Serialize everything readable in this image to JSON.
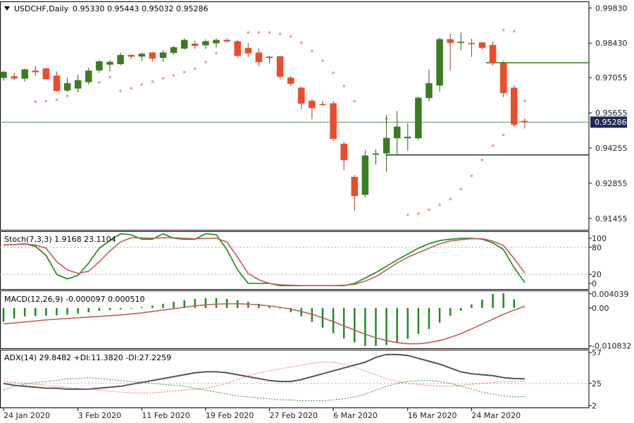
{
  "header": {
    "symbol": "USDCHF,Daily",
    "ohlc_text": "0.95330 0.95443 0.95032 0.95286",
    "collapse_icon": "triangle-down-icon"
  },
  "current_price_label": "0.95286",
  "colors": {
    "bull": "#3a7d1f",
    "bear": "#ee4b2b",
    "sar": "#f0a080",
    "price_line": "#5b8f5b",
    "stoch_main": "#0f8a0f",
    "stoch_signal": "#c85a5a",
    "macd_hist": "#1f8a1f",
    "macd_signal": "#c85a5a",
    "adx": "#555555",
    "plus_di": "#2e8b2e",
    "minus_di": "#e8704a",
    "current_badge_bg": "#1e2a55"
  },
  "chart_data": [
    {
      "type": "candlestick",
      "pane": "price",
      "title": "USDCHF,Daily",
      "y_ticks": [
        "0.99830",
        "0.98430",
        "0.97055",
        "0.95655",
        "0.94255",
        "0.92855",
        "0.91455"
      ],
      "ylim": [
        0.91,
        1.0009
      ],
      "candles": [
        {
          "o": 0.9705,
          "h": 0.9733,
          "l": 0.9693,
          "c": 0.9728
        },
        {
          "o": 0.971,
          "h": 0.9725,
          "l": 0.9695,
          "c": 0.9703
        },
        {
          "o": 0.9702,
          "h": 0.9742,
          "l": 0.969,
          "c": 0.9738
        },
        {
          "o": 0.9733,
          "h": 0.9752,
          "l": 0.9712,
          "c": 0.9728
        },
        {
          "o": 0.9742,
          "h": 0.9745,
          "l": 0.9698,
          "c": 0.97
        },
        {
          "o": 0.9713,
          "h": 0.973,
          "l": 0.9648,
          "c": 0.9653
        },
        {
          "o": 0.9655,
          "h": 0.9705,
          "l": 0.9648,
          "c": 0.9683
        },
        {
          "o": 0.9663,
          "h": 0.9718,
          "l": 0.9655,
          "c": 0.9695
        },
        {
          "o": 0.9688,
          "h": 0.9745,
          "l": 0.9678,
          "c": 0.9733
        },
        {
          "o": 0.9735,
          "h": 0.9775,
          "l": 0.9725,
          "c": 0.977
        },
        {
          "o": 0.9758,
          "h": 0.9775,
          "l": 0.973,
          "c": 0.9768
        },
        {
          "o": 0.976,
          "h": 0.9805,
          "l": 0.9755,
          "c": 0.9795
        },
        {
          "o": 0.9795,
          "h": 0.98,
          "l": 0.978,
          "c": 0.979
        },
        {
          "o": 0.979,
          "h": 0.9805,
          "l": 0.9772,
          "c": 0.98
        },
        {
          "o": 0.9805,
          "h": 0.9808,
          "l": 0.977,
          "c": 0.9782
        },
        {
          "o": 0.9785,
          "h": 0.9815,
          "l": 0.9768,
          "c": 0.9805
        },
        {
          "o": 0.9805,
          "h": 0.9832,
          "l": 0.9797,
          "c": 0.9826
        },
        {
          "o": 0.9822,
          "h": 0.9862,
          "l": 0.9817,
          "c": 0.9855
        },
        {
          "o": 0.984,
          "h": 0.9852,
          "l": 0.982,
          "c": 0.9833
        },
        {
          "o": 0.9835,
          "h": 0.9858,
          "l": 0.982,
          "c": 0.985
        },
        {
          "o": 0.9843,
          "h": 0.9862,
          "l": 0.9825,
          "c": 0.9855
        },
        {
          "o": 0.9855,
          "h": 0.9862,
          "l": 0.9845,
          "c": 0.985
        },
        {
          "o": 0.985,
          "h": 0.9855,
          "l": 0.9785,
          "c": 0.9793
        },
        {
          "o": 0.9823,
          "h": 0.9843,
          "l": 0.9788,
          "c": 0.9803
        },
        {
          "o": 0.9805,
          "h": 0.9823,
          "l": 0.9752,
          "c": 0.9768
        },
        {
          "o": 0.9785,
          "h": 0.9792,
          "l": 0.9762,
          "c": 0.9788
        },
        {
          "o": 0.979,
          "h": 0.9792,
          "l": 0.97,
          "c": 0.971
        },
        {
          "o": 0.9705,
          "h": 0.9712,
          "l": 0.9672,
          "c": 0.9682
        },
        {
          "o": 0.9665,
          "h": 0.967,
          "l": 0.958,
          "c": 0.9603
        },
        {
          "o": 0.9613,
          "h": 0.9623,
          "l": 0.954,
          "c": 0.9585
        },
        {
          "o": 0.96,
          "h": 0.9613,
          "l": 0.9595,
          "c": 0.9598
        },
        {
          "o": 0.9603,
          "h": 0.9613,
          "l": 0.9453,
          "c": 0.9463
        },
        {
          "o": 0.9442,
          "h": 0.945,
          "l": 0.9338,
          "c": 0.9378
        },
        {
          "o": 0.931,
          "h": 0.9318,
          "l": 0.9175,
          "c": 0.9235
        },
        {
          "o": 0.924,
          "h": 0.9418,
          "l": 0.923,
          "c": 0.9395
        },
        {
          "o": 0.94,
          "h": 0.942,
          "l": 0.936,
          "c": 0.9403
        },
        {
          "o": 0.9405,
          "h": 0.9558,
          "l": 0.9332,
          "c": 0.9465
        },
        {
          "o": 0.9465,
          "h": 0.9573,
          "l": 0.9402,
          "c": 0.951
        },
        {
          "o": 0.9465,
          "h": 0.9523,
          "l": 0.9415,
          "c": 0.947
        },
        {
          "o": 0.9465,
          "h": 0.963,
          "l": 0.9458,
          "c": 0.9625
        },
        {
          "o": 0.9625,
          "h": 0.9738,
          "l": 0.9612,
          "c": 0.9683
        },
        {
          "o": 0.9675,
          "h": 0.9865,
          "l": 0.965,
          "c": 0.9858
        },
        {
          "o": 0.9858,
          "h": 0.988,
          "l": 0.9735,
          "c": 0.9845
        },
        {
          "o": 0.9845,
          "h": 0.9885,
          "l": 0.9815,
          "c": 0.9848
        },
        {
          "o": 0.9843,
          "h": 0.986,
          "l": 0.9788,
          "c": 0.9842
        },
        {
          "o": 0.9845,
          "h": 0.9848,
          "l": 0.9818,
          "c": 0.9825
        },
        {
          "o": 0.9835,
          "h": 0.985,
          "l": 0.9753,
          "c": 0.9765
        },
        {
          "o": 0.9763,
          "h": 0.9773,
          "l": 0.9628,
          "c": 0.9645
        },
        {
          "o": 0.9665,
          "h": 0.9675,
          "l": 0.951,
          "c": 0.952
        },
        {
          "o": 0.9533,
          "h": 0.9544,
          "l": 0.9503,
          "c": 0.9529
        }
      ],
      "parabolic_sar": [
        null,
        null,
        null,
        0.961,
        0.9612,
        0.9618,
        0.9633,
        0.9652,
        null,
        0.9687,
        0.9708,
        0.9653,
        0.9663,
        0.9678,
        0.969,
        0.9703,
        0.9715,
        0.9728,
        0.9742,
        0.9768,
        0.9803,
        null,
        null,
        0.9885,
        0.9885,
        0.9885,
        0.988,
        0.987,
        0.9845,
        0.9812,
        0.9773,
        0.9725,
        0.9672,
        0.9612,
        null,
        null,
        0.9542,
        null,
        0.916,
        0.9165,
        0.918,
        0.92,
        0.9222,
        0.9262,
        0.9315,
        0.9378,
        0.9435,
        0.9478,
        0.9518,
        0.9613
      ],
      "sar_extra": [
        0.9895,
        0.989
      ],
      "horizontal_levels": [
        0.9765,
        0.9398
      ],
      "current_price": 0.95286
    },
    {
      "type": "line",
      "pane": "stochastic",
      "title": "Stoch(7,3,3) 1.9168 23.1104",
      "y_ticks": [
        "100",
        "80",
        "20",
        "0"
      ],
      "levels": [
        80,
        20
      ],
      "ylim": [
        0,
        100
      ],
      "series": [
        {
          "name": "Stoch main",
          "values": [
            85,
            86,
            88,
            82,
            62,
            20,
            10,
            18,
            45,
            78,
            95,
            110,
            108,
            98,
            98,
            110,
            100,
            98,
            98,
            110,
            108,
            75,
            30,
            0,
            0,
            0,
            -5,
            -5,
            -5,
            -5,
            -5,
            -5,
            -5,
            0,
            12,
            24,
            38,
            52,
            65,
            78,
            88,
            95,
            98,
            100,
            100,
            98,
            90,
            75,
            35,
            1.9
          ]
        },
        {
          "name": "Stoch signal",
          "values": [
            85,
            86,
            87,
            85,
            78,
            48,
            30,
            22,
            27,
            48,
            72,
            92,
            101,
            101,
            100,
            101,
            101,
            100,
            99,
            100,
            100,
            92,
            58,
            22,
            8,
            0,
            -3,
            -4,
            -5,
            -5,
            -5,
            -5,
            -4,
            -2,
            5,
            15,
            30,
            45,
            58,
            68,
            78,
            88,
            94,
            97,
            99,
            99,
            94,
            84,
            55,
            23.1
          ]
        }
      ]
    },
    {
      "type": "bar",
      "pane": "macd",
      "title": "MACD(12,26,9) -0.000097 0.000510",
      "y_ticks": [
        "0.004039",
        "0.00",
        "-0.010832"
      ],
      "ylim": [
        -0.0115,
        0.005
      ],
      "histogram": [
        -0.0039,
        -0.003,
        -0.0024,
        -0.0023,
        -0.0022,
        -0.0021,
        -0.0019,
        -0.0016,
        -0.0012,
        -0.0008,
        -0.0006,
        -0.0004,
        -0.0002,
        0.0003,
        0.0007,
        0.0012,
        0.0018,
        0.0022,
        0.0026,
        0.0028,
        0.0028,
        0.0026,
        0.0022,
        0.0018,
        0.0012,
        0.0006,
        -0.0002,
        -0.0012,
        -0.0024,
        -0.004,
        -0.0056,
        -0.0072,
        -0.0087,
        -0.0098,
        -0.0108,
        -0.0108,
        -0.0106,
        -0.0098,
        -0.0088,
        -0.0074,
        -0.006,
        -0.0042,
        -0.0022,
        -0.0008,
        0.001,
        0.0024,
        0.004,
        0.0042,
        0.0025,
        -0.0001
      ],
      "signal": [
        -0.0045,
        -0.0043,
        -0.004,
        -0.0037,
        -0.0034,
        -0.0032,
        -0.003,
        -0.0028,
        -0.0026,
        -0.0024,
        -0.0022,
        -0.002,
        -0.0017,
        -0.0014,
        -0.001,
        -0.0006,
        -0.0002,
        0.0002,
        0.0006,
        0.0009,
        0.0011,
        0.0012,
        0.0012,
        0.0011,
        0.0009,
        0.0006,
        0.0002,
        -0.0003,
        -0.001,
        -0.0018,
        -0.0028,
        -0.0039,
        -0.0051,
        -0.0063,
        -0.0075,
        -0.0085,
        -0.0093,
        -0.0099,
        -0.0102,
        -0.0102,
        -0.0099,
        -0.0093,
        -0.0084,
        -0.0073,
        -0.006,
        -0.0046,
        -0.0032,
        -0.0018,
        -0.0006,
        0.0005
      ]
    },
    {
      "type": "line",
      "pane": "adx",
      "title": "ADX(14) 29.8482 +DI:11.3820 -DI:27.2259",
      "y_ticks": [
        "57",
        "25",
        "2"
      ],
      "levels": [
        25
      ],
      "ylim": [
        0,
        60
      ],
      "series": [
        {
          "name": "ADX",
          "values": [
            25,
            23,
            22,
            21,
            20,
            20,
            19,
            19,
            19,
            20,
            21,
            22,
            24,
            26,
            28,
            30,
            32,
            34,
            36,
            37,
            37,
            36,
            34,
            32,
            30,
            28,
            27,
            27,
            29,
            32,
            35,
            38,
            41,
            44,
            47,
            52,
            55,
            55,
            54,
            51,
            48,
            45,
            41,
            37,
            35,
            34,
            33,
            31,
            30,
            29.8
          ]
        },
        {
          "name": "+DI",
          "values": [
            18,
            22,
            24,
            26,
            27,
            28,
            30,
            30,
            31,
            30,
            29,
            28,
            27,
            26,
            25,
            24,
            23,
            22,
            20,
            18,
            16,
            14,
            12,
            11,
            10,
            9,
            8,
            8,
            7,
            7,
            7,
            8,
            9,
            11,
            14,
            18,
            22,
            25,
            27,
            28,
            28,
            27,
            25,
            22,
            19,
            16,
            14,
            12,
            11,
            11.4
          ]
        },
        {
          "name": "-DI",
          "values": [
            27,
            26,
            25,
            24,
            23,
            22,
            21,
            20,
            19,
            18,
            17,
            16,
            15,
            15,
            15,
            16,
            17,
            18,
            19,
            20,
            22,
            25,
            29,
            33,
            36,
            38,
            40,
            42,
            44,
            46,
            47,
            47,
            45,
            42,
            38,
            34,
            30,
            27,
            25,
            24,
            23,
            22,
            22,
            23,
            24,
            25,
            26,
            27,
            27,
            27.2
          ]
        }
      ]
    }
  ],
  "x_axis": {
    "date_labels": [
      "24 Jan 2020",
      "3 Feb 2020",
      "11 Feb 2020",
      "19 Feb 2020",
      "27 Feb 2020",
      "6 Mar 2020",
      "16 Mar 2020",
      "24 Mar 2020"
    ]
  }
}
